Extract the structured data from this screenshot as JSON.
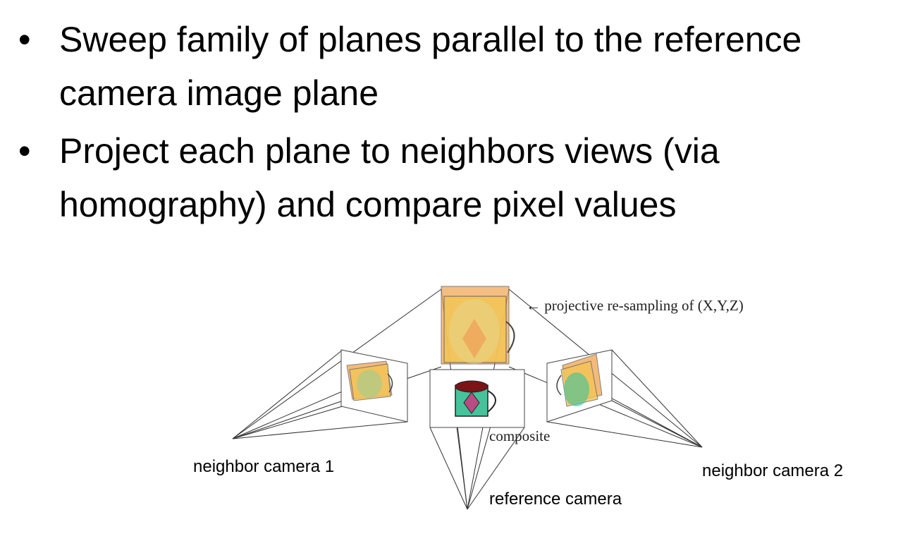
{
  "bullets": [
    {
      "marker": "•",
      "text": "Sweep family of planes parallel to the reference camera image plane"
    },
    {
      "marker": "•",
      "text": "Project each plane to neighbors views (via homography) and compare pixel values"
    }
  ],
  "figure": {
    "top_annotation": "← projective re-sampling of (X,Y,Z)",
    "composite_label": "composite",
    "neighbor1_label": "neighbor camera 1",
    "neighbor2_label": "neighbor camera 2",
    "reference_label": "reference camera"
  },
  "colors": {
    "plane_fill": "#f3c456",
    "plane_orange": "#f1a95a",
    "mug_body": "#46c39a",
    "mug_rim": "#7a1416",
    "diamond": "#b84d84",
    "line": "#333333"
  }
}
